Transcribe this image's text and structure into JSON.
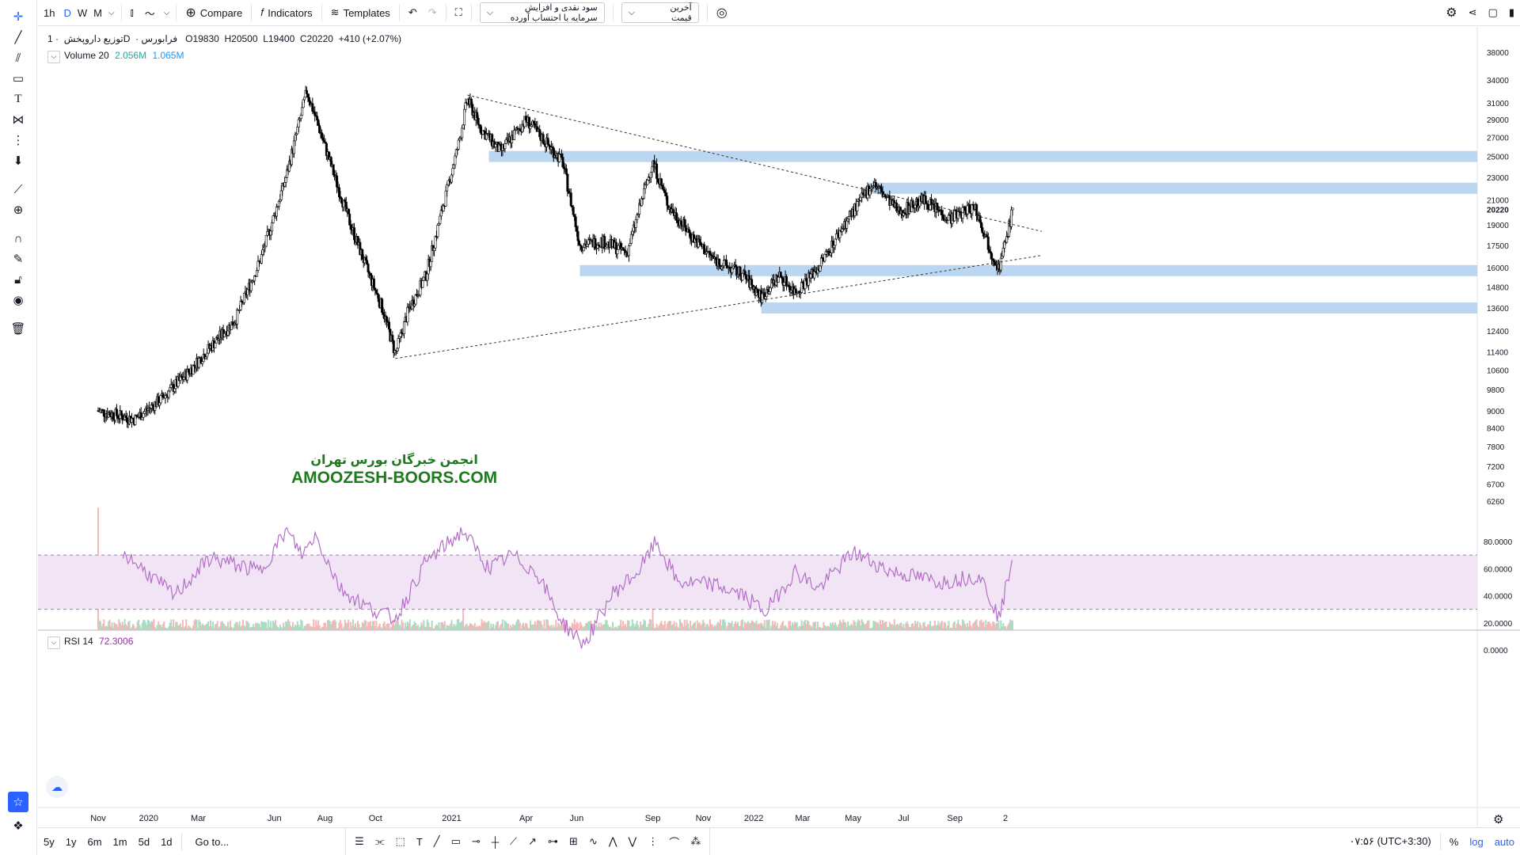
{
  "toolbar": {
    "intervals": [
      "1h",
      "D",
      "W",
      "M"
    ],
    "active_interval": "D",
    "compare_label": "Compare",
    "indicators_label": "Indicators",
    "templates_label": "Templates",
    "dropdown1": "سود نقدی و افزایش سرمایه با احتساب آورده",
    "dropdown2": "آخرین قیمت"
  },
  "legend": {
    "symbol": "توزیع داروپخش",
    "interval": "1D",
    "exchange": "فرابورس",
    "open": "O19830",
    "high": "H20500",
    "low": "L19400",
    "close": "C20220",
    "change": "+410 (+2.07%)",
    "volume_label": "Volume 20",
    "volume_val1": "2.056M",
    "volume_val2": "1.065M",
    "rsi_label": "RSI 14",
    "rsi_value": "72.3006"
  },
  "watermark": {
    "line1": "انجمن خبرگان بورس تهران",
    "line2": "AMOOZESH-BOORS.COM"
  },
  "bottom": {
    "ranges": [
      "5y",
      "1y",
      "6m",
      "1m",
      "5d",
      "1d"
    ],
    "goto": "Go to...",
    "time": "۰۷:۵۶ (UTC+3:30)",
    "pct": "%",
    "log": "log",
    "auto": "auto"
  },
  "colors": {
    "accent": "#2962ff",
    "zone": "#bbd6f0",
    "rsi_line": "#b36ec8",
    "rsi_band": "#f1e5f5",
    "volume_up": "#a9dcc3",
    "volume_down": "#f5b7b7",
    "watermark_text": "#1f7a1f"
  },
  "chart_data": {
    "type": "candlestick",
    "price_axis": {
      "scale": "log",
      "ticks": [
        38000,
        34000,
        31000,
        29000,
        27000,
        25000,
        23000,
        21000,
        19000,
        17500,
        16000,
        14800,
        13600,
        12400,
        11400,
        10600,
        9800,
        9000,
        8400,
        7800,
        7200,
        6700,
        6260
      ],
      "last_price": 20220
    },
    "rsi_axis": {
      "ticks": [
        "80.0000",
        "60.0000",
        "40.0000",
        "20.0000",
        "0.0000"
      ],
      "upper_band": 70,
      "lower_band": 30,
      "current": 72.3006
    },
    "time_axis": [
      "Nov",
      "2020",
      "Mar",
      "Jun",
      "Aug",
      "Oct",
      "2021",
      "Apr",
      "Jun",
      "Sep",
      "Nov",
      "2022",
      "Mar",
      "May",
      "Jul",
      "Sep",
      "2"
    ],
    "price_path": [
      [
        "2019-11-01",
        9000
      ],
      [
        "2019-12-15",
        8700
      ],
      [
        "2020-01-15",
        9400
      ],
      [
        "2020-02-15",
        10400
      ],
      [
        "2020-03-15",
        11600
      ],
      [
        "2020-04-15",
        13000
      ],
      [
        "2020-05-15",
        16500
      ],
      [
        "2020-06-15",
        23000
      ],
      [
        "2020-07-10",
        32500
      ],
      [
        "2020-07-25",
        28000
      ],
      [
        "2020-08-15",
        22500
      ],
      [
        "2020-09-01",
        19000
      ],
      [
        "2020-09-20",
        16000
      ],
      [
        "2020-10-10",
        13500
      ],
      [
        "2020-10-25",
        11300
      ],
      [
        "2020-11-10",
        13500
      ],
      [
        "2020-12-01",
        15500
      ],
      [
        "2020-12-20",
        20000
      ],
      [
        "2021-01-10",
        26500
      ],
      [
        "2021-01-20",
        31500
      ],
      [
        "2021-02-05",
        28000
      ],
      [
        "2021-03-01",
        25500
      ],
      [
        "2021-04-01",
        29000
      ],
      [
        "2021-05-15",
        24500
      ],
      [
        "2021-06-05",
        17500
      ],
      [
        "2021-07-01",
        17800
      ],
      [
        "2021-08-01",
        17000
      ],
      [
        "2021-09-01",
        24500
      ],
      [
        "2021-09-20",
        20500
      ],
      [
        "2021-10-20",
        18000
      ],
      [
        "2021-11-15",
        16500
      ],
      [
        "2021-12-20",
        15500
      ],
      [
        "2022-01-10",
        14200
      ],
      [
        "2022-02-01",
        15500
      ],
      [
        "2022-02-20",
        14500
      ],
      [
        "2022-03-20",
        16000
      ],
      [
        "2022-04-20",
        19000
      ],
      [
        "2022-05-25",
        22500
      ],
      [
        "2022-06-25",
        20000
      ],
      [
        "2022-07-25",
        21000
      ],
      [
        "2022-08-25",
        19500
      ],
      [
        "2022-09-25",
        20500
      ],
      [
        "2022-10-15",
        17000
      ],
      [
        "2022-10-25",
        16000
      ],
      [
        "2022-11-10",
        20220
      ]
    ],
    "volume_spikes": [
      [
        "2019-11-01",
        1.0
      ],
      [
        "2021-01-15",
        0.4
      ],
      [
        "2021-09-01",
        0.38
      ]
    ],
    "rsi_path": [
      [
        "2019-12-01",
        72
      ],
      [
        "2020-02-01",
        40
      ],
      [
        "2020-03-15",
        68
      ],
      [
        "2020-05-15",
        58
      ],
      [
        "2020-06-15",
        88
      ],
      [
        "2020-07-05",
        70
      ],
      [
        "2020-07-20",
        85
      ],
      [
        "2020-08-20",
        45
      ],
      [
        "2020-09-20",
        32
      ],
      [
        "2020-10-25",
        23
      ],
      [
        "2020-12-01",
        65
      ],
      [
        "2021-01-15",
        88
      ],
      [
        "2021-02-15",
        60
      ],
      [
        "2021-03-15",
        70
      ],
      [
        "2021-04-15",
        56
      ],
      [
        "2021-05-15",
        20
      ],
      [
        "2021-06-10",
        4
      ],
      [
        "2021-07-15",
        42
      ],
      [
        "2021-08-15",
        58
      ],
      [
        "2021-09-05",
        80
      ],
      [
        "2021-10-01",
        50
      ],
      [
        "2021-11-15",
        48
      ],
      [
        "2021-12-20",
        40
      ],
      [
        "2022-01-15",
        28
      ],
      [
        "2022-02-20",
        58
      ],
      [
        "2022-03-20",
        45
      ],
      [
        "2022-05-01",
        72
      ],
      [
        "2022-06-15",
        58
      ],
      [
        "2022-08-15",
        50
      ],
      [
        "2022-10-01",
        55
      ],
      [
        "2022-10-25",
        23
      ],
      [
        "2022-11-10",
        72
      ]
    ],
    "horizontal_zones": [
      {
        "price": 25000,
        "from": "2021-02-15"
      },
      {
        "price": 22000,
        "from": "2022-05-20"
      },
      {
        "price": 15800,
        "from": "2021-06-05"
      },
      {
        "price": 13600,
        "from": "2022-01-10"
      }
    ],
    "trend_lines": [
      {
        "from": [
          "2021-01-20",
          32000
        ],
        "to": [
          "2022-12-15",
          18500
        ]
      },
      {
        "from": [
          "2020-10-25",
          11100
        ],
        "to": [
          "2022-12-15",
          16800
        ]
      }
    ]
  }
}
